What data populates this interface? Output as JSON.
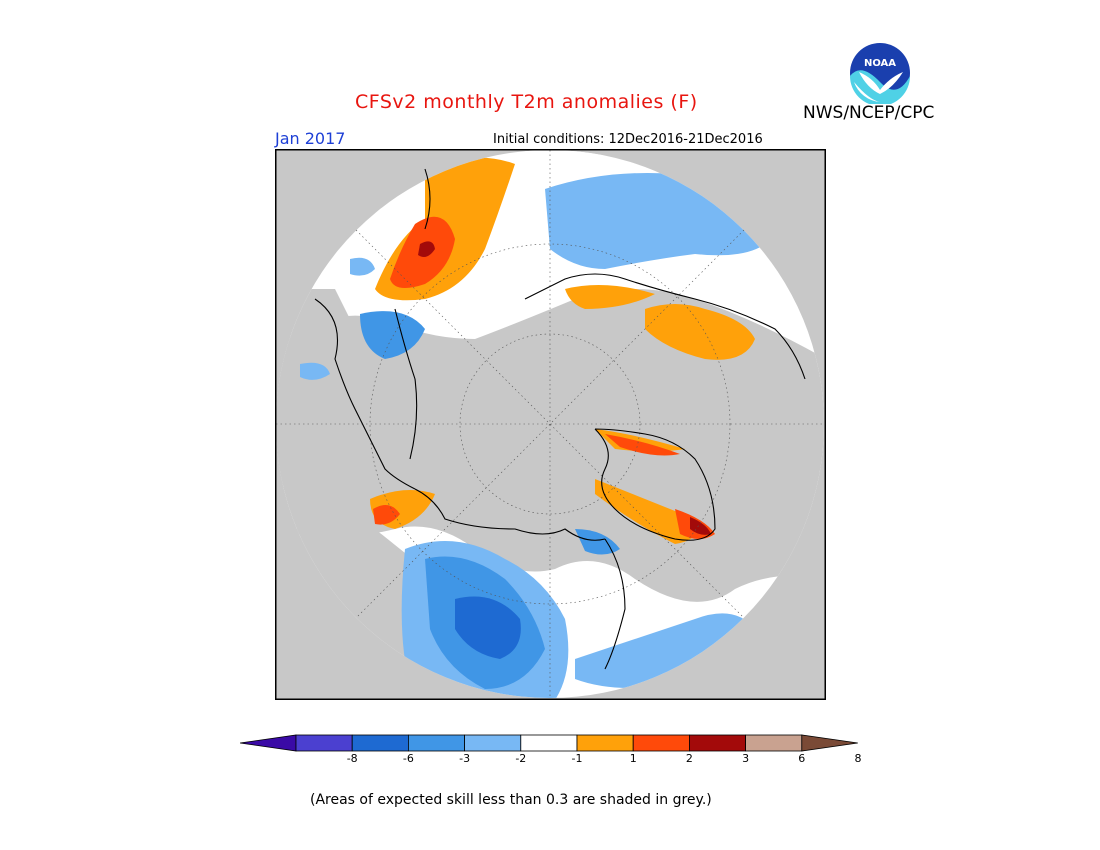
{
  "header": {
    "title": "CFSv2 monthly T2m anomalies (F)",
    "month": "Jan 2017",
    "initial_conditions": "Initial conditions: 12Dec2016-21Dec2016",
    "organization": "NWS/NCEP/CPC",
    "logo_text": "NOAA"
  },
  "legend": {
    "colors": [
      "#3a0aa6",
      "#4b40d0",
      "#1e6ad2",
      "#4096e6",
      "#78b8f4",
      "#ffffff",
      "#ffa10a",
      "#ff4a0a",
      "#a30a0a",
      "#c9a290",
      "#7a4a36"
    ],
    "tick_labels": [
      "-8",
      "-6",
      "-3",
      "-2",
      "-1",
      "1",
      "2",
      "3",
      "6",
      "8"
    ]
  },
  "colors": {
    "no_skill": "#c8c8c8",
    "title": "#e8150f",
    "month": "#1d3fd6"
  },
  "footnote": "(Areas of expected skill less than 0.3 are shaded in grey.)"
}
